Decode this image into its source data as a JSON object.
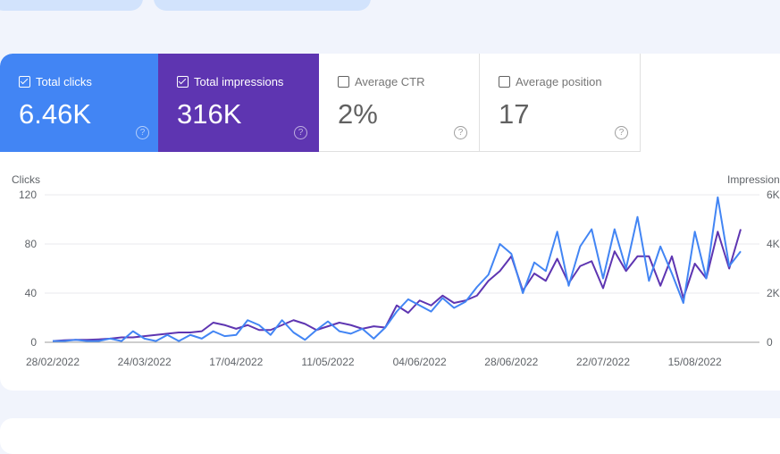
{
  "metrics": [
    {
      "label": "Total clicks",
      "value": "6.46K",
      "checked": true,
      "color": "#4285f4"
    },
    {
      "label": "Total impressions",
      "value": "316K",
      "checked": true,
      "color": "#5e35b1"
    },
    {
      "label": "Average CTR",
      "value": "2%",
      "checked": false
    },
    {
      "label": "Average position",
      "value": "17",
      "checked": false
    }
  ],
  "help_glyph": "?",
  "chart_data": {
    "type": "line",
    "xlabel": "",
    "ylabel_left": "Clicks",
    "ylabel_right": "Impressions",
    "y_left_ticks": [
      "0",
      "40",
      "80",
      "120"
    ],
    "y_right_ticks": [
      "0",
      "2K",
      "4K",
      "6K"
    ],
    "ylim_left": [
      0,
      120
    ],
    "ylim_right": [
      0,
      6000
    ],
    "x_ticks": [
      "28/02/2022",
      "24/03/2022",
      "17/04/2022",
      "11/05/2022",
      "04/06/2022",
      "28/06/2022",
      "22/07/2022",
      "15/08/2022"
    ],
    "grid": true,
    "dates": [
      "28/02",
      "03/03",
      "06/03",
      "09/03",
      "12/03",
      "15/03",
      "18/03",
      "21/03",
      "24/03",
      "27/03",
      "30/03",
      "02/04",
      "05/04",
      "08/04",
      "11/04",
      "14/04",
      "17/04",
      "20/04",
      "23/04",
      "26/04",
      "29/04",
      "02/05",
      "05/05",
      "08/05",
      "11/05",
      "14/05",
      "17/05",
      "20/05",
      "23/05",
      "26/05",
      "29/05",
      "01/06",
      "04/06",
      "07/06",
      "10/06",
      "13/06",
      "16/06",
      "19/06",
      "22/06",
      "25/06",
      "28/06",
      "01/07",
      "04/07",
      "07/07",
      "10/07",
      "13/07",
      "16/07",
      "19/07",
      "22/07",
      "25/07",
      "28/07",
      "31/07",
      "03/08",
      "06/08",
      "09/08",
      "12/08",
      "15/08",
      "18/08",
      "21/08",
      "24/08",
      "27/08"
    ],
    "series": [
      {
        "name": "Clicks",
        "axis": "left",
        "color": "#4285f4",
        "values": [
          1,
          1,
          2,
          1,
          1,
          3,
          1,
          9,
          3,
          1,
          6,
          1,
          6,
          3,
          9,
          5,
          6,
          18,
          14,
          6,
          18,
          8,
          2,
          10,
          17,
          9,
          7,
          11,
          3,
          12,
          25,
          35,
          30,
          25,
          36,
          28,
          33,
          45,
          55,
          80,
          72,
          40,
          65,
          58,
          90,
          46,
          78,
          92,
          52,
          92,
          60,
          102,
          50,
          78,
          56,
          32,
          90,
          52,
          118,
          62,
          74
        ]
      },
      {
        "name": "Impressions",
        "axis": "right",
        "color": "#5e35b1",
        "values": [
          50,
          80,
          100,
          100,
          120,
          150,
          200,
          200,
          250,
          300,
          350,
          400,
          400,
          450,
          800,
          700,
          550,
          700,
          500,
          500,
          700,
          900,
          750,
          500,
          650,
          800,
          700,
          550,
          650,
          600,
          1500,
          1200,
          1700,
          1500,
          1900,
          1600,
          1700,
          1900,
          2500,
          2900,
          3500,
          2100,
          2800,
          2500,
          3400,
          2400,
          3100,
          3300,
          2200,
          3700,
          2900,
          3500,
          3500,
          2300,
          3500,
          1800,
          3200,
          2600,
          4500,
          3000,
          4600
        ]
      }
    ]
  }
}
